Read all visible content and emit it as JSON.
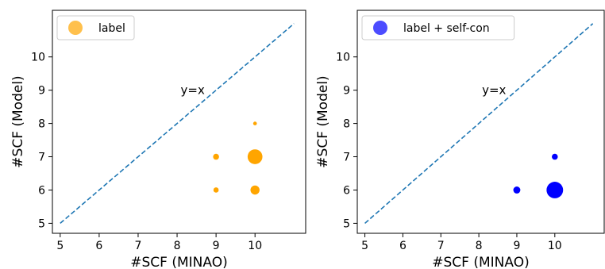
{
  "chart_data": [
    {
      "type": "scatter",
      "xlabel": "#SCF (MINAO)",
      "ylabel": "#SCF (Model)",
      "xlim": [
        4.8,
        11.3
      ],
      "ylim": [
        4.7,
        11.4
      ],
      "xticks": [
        5,
        6,
        7,
        8,
        9,
        10
      ],
      "yticks": [
        5,
        6,
        7,
        8,
        9,
        10
      ],
      "reference_line": {
        "label": "y=x",
        "from": [
          5,
          5
        ],
        "to": [
          11,
          11
        ],
        "style": "dashed",
        "color": "#1f77b4",
        "label_at": [
          8.4,
          9
        ]
      },
      "legend": {
        "position": "top-left",
        "entries": [
          "label"
        ]
      },
      "series": [
        {
          "name": "label",
          "color": "#ffa500",
          "points": [
            {
              "x": 9,
              "y": 6,
              "size": 1
            },
            {
              "x": 9,
              "y": 7,
              "size": 1.3
            },
            {
              "x": 10,
              "y": 6,
              "size": 3
            },
            {
              "x": 10,
              "y": 7,
              "size": 8
            },
            {
              "x": 10,
              "y": 8,
              "size": 0.5
            }
          ]
        }
      ]
    },
    {
      "type": "scatter",
      "xlabel": "#SCF (MINAO)",
      "ylabel": "#SCF (Model)",
      "xlim": [
        4.8,
        11.3
      ],
      "ylim": [
        4.7,
        11.4
      ],
      "xticks": [
        5,
        6,
        7,
        8,
        9,
        10
      ],
      "yticks": [
        5,
        6,
        7,
        8,
        9,
        10
      ],
      "reference_line": {
        "label": "y=x",
        "from": [
          5,
          5
        ],
        "to": [
          11,
          11
        ],
        "style": "dashed",
        "color": "#1f77b4",
        "label_at": [
          8.4,
          9
        ]
      },
      "legend": {
        "position": "top-left",
        "entries": [
          "label + self-con"
        ]
      },
      "series": [
        {
          "name": "label + self-con",
          "color": "#0000ff",
          "points": [
            {
              "x": 9,
              "y": 6,
              "size": 1.8
            },
            {
              "x": 10,
              "y": 6,
              "size": 10
            },
            {
              "x": 10,
              "y": 7,
              "size": 1.3
            }
          ]
        }
      ]
    }
  ]
}
